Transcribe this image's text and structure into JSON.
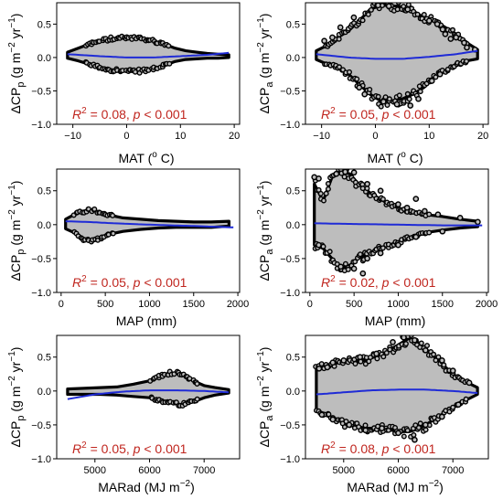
{
  "colors": {
    "trend": "#1f2bd6",
    "cloud": "#bdbdbd",
    "outline": "#000000",
    "annotation": "#c0261f"
  },
  "chart_data": [
    {
      "type": "scatter",
      "id": "A",
      "xlabel": "MAT (",
      "xlabel_sup": "o",
      "xlabel_tail": " C)",
      "ylabel_main": "ΔCP",
      "ylabel_sub": "p",
      "ylabel_unit": " (g m",
      "ylabel_sup1": "−2",
      "ylabel_mid": " yr",
      "ylabel_sup2": "−1",
      "ylabel_end": ")",
      "xlim": [
        -13,
        21
      ],
      "ylim": [
        -1.0,
        0.82
      ],
      "xticks": [
        -10,
        0,
        10,
        20
      ],
      "xticklabels": [
        "−10",
        "0",
        "10",
        "20"
      ],
      "yticks": [
        -1.0,
        -0.5,
        0.0,
        0.5
      ],
      "yticklabels": [
        "−1.0",
        "−0.5",
        "0.0",
        "0.5"
      ],
      "annotation": {
        "r2": "0.08",
        "p": "< 0.001"
      },
      "trend": [
        [
          -11,
          0.05
        ],
        [
          -5,
          0.02
        ],
        [
          0,
          0.0
        ],
        [
          5,
          0.0
        ],
        [
          10,
          0.02
        ],
        [
          15,
          0.04
        ],
        [
          19,
          0.07
        ]
      ],
      "envelope": {
        "x": [
          -11,
          -9,
          -7,
          -5,
          -3,
          -1,
          1,
          3,
          5,
          7,
          9,
          11,
          13,
          15,
          17,
          19
        ],
        "upper": [
          0.08,
          0.14,
          0.2,
          0.25,
          0.28,
          0.29,
          0.29,
          0.28,
          0.25,
          0.2,
          0.14,
          0.1,
          0.08,
          0.06,
          0.05,
          0.04
        ],
        "lower": [
          -0.01,
          -0.05,
          -0.1,
          -0.15,
          -0.18,
          -0.2,
          -0.21,
          -0.2,
          -0.17,
          -0.12,
          -0.06,
          -0.03,
          -0.02,
          -0.01,
          -0.01,
          0.0
        ]
      },
      "points": []
    },
    {
      "type": "scatter",
      "id": "B",
      "xlabel": "MAT (",
      "xlabel_sup": "o",
      "xlabel_tail": " C)",
      "ylabel_main": "ΔCP",
      "ylabel_sub": "a",
      "ylabel_unit": " (g m",
      "ylabel_sup1": "−2",
      "ylabel_mid": " yr",
      "ylabel_sup2": "−1",
      "ylabel_end": ")",
      "xlim": [
        -13,
        21
      ],
      "ylim": [
        -1.0,
        0.82
      ],
      "xticks": [
        -10,
        0,
        10,
        20
      ],
      "xticklabels": [
        "−10",
        "0",
        "10",
        "20"
      ],
      "yticks": [
        -1.0,
        -0.5,
        0.0,
        0.5
      ],
      "yticklabels": [
        "−1.0",
        "−0.5",
        "0.0",
        "0.5"
      ],
      "annotation": {
        "r2": "0.05",
        "p": "< 0.001"
      },
      "trend": [
        [
          -11,
          0.05
        ],
        [
          -5,
          0.0
        ],
        [
          0,
          -0.02
        ],
        [
          5,
          -0.02
        ],
        [
          10,
          0.01
        ],
        [
          15,
          0.05
        ],
        [
          19,
          0.1
        ]
      ],
      "envelope": {
        "x": [
          -11,
          -9,
          -7,
          -5,
          -3,
          -1,
          1,
          3,
          5,
          7,
          9,
          11,
          13,
          15,
          17,
          19
        ],
        "upper": [
          0.1,
          0.18,
          0.3,
          0.4,
          0.55,
          0.72,
          0.78,
          0.78,
          0.76,
          0.7,
          0.6,
          0.55,
          0.45,
          0.35,
          0.22,
          0.12
        ],
        "lower": [
          -0.03,
          -0.1,
          -0.15,
          -0.25,
          -0.4,
          -0.55,
          -0.65,
          -0.65,
          -0.62,
          -0.55,
          -0.45,
          -0.3,
          -0.2,
          -0.1,
          -0.05,
          -0.02
        ]
      },
      "points": [
        [
          -9.5,
          0.25
        ],
        [
          -8,
          0.3
        ],
        [
          -6.5,
          0.45
        ],
        [
          -4,
          0.6
        ],
        [
          -3,
          -0.45
        ],
        [
          -2,
          -0.55
        ],
        [
          0.5,
          0.78
        ],
        [
          2.5,
          0.77
        ],
        [
          4,
          -0.7
        ],
        [
          6,
          0.72
        ],
        [
          8,
          -0.62
        ],
        [
          10,
          0.55
        ],
        [
          11.5,
          0.5
        ],
        [
          12.5,
          0.42
        ],
        [
          13,
          0.35
        ],
        [
          14,
          0.28
        ],
        [
          15,
          0.3
        ],
        [
          16.5,
          0.22
        ],
        [
          17,
          0.15
        ],
        [
          18.5,
          0.12
        ],
        [
          12,
          -0.25
        ],
        [
          10.5,
          -0.35
        ],
        [
          6.5,
          -0.72
        ],
        [
          1.5,
          -0.66
        ]
      ]
    },
    {
      "type": "scatter",
      "id": "C",
      "xlabel": "MAP (mm)",
      "ylabel_main": "ΔCP",
      "ylabel_sub": "p",
      "ylabel_unit": " (g m",
      "ylabel_sup1": "−2",
      "ylabel_mid": " yr",
      "ylabel_sup2": "−1",
      "ylabel_end": ")",
      "xlim": [
        -50,
        2020
      ],
      "ylim": [
        -1.0,
        0.82
      ],
      "xticks": [
        0,
        500,
        1000,
        1500,
        2000
      ],
      "xticklabels": [
        "0",
        "500",
        "1000",
        "1500",
        "2000"
      ],
      "yticks": [
        -1.0,
        -0.5,
        0.0,
        0.5
      ],
      "yticklabels": [
        "−1.0",
        "−0.5",
        "0.0",
        "0.5"
      ],
      "annotation": {
        "r2": "0.05",
        "p": "< 0.001"
      },
      "trend": [
        [
          50,
          0.05
        ],
        [
          300,
          0.04
        ],
        [
          600,
          0.02
        ],
        [
          1000,
          0.0
        ],
        [
          1500,
          -0.02
        ],
        [
          1950,
          -0.04
        ]
      ],
      "envelope": {
        "x": [
          50,
          150,
          250,
          350,
          450,
          550,
          700,
          900,
          1100,
          1300,
          1500,
          1700,
          1900
        ],
        "upper": [
          0.08,
          0.15,
          0.2,
          0.22,
          0.18,
          0.14,
          0.1,
          0.08,
          0.06,
          0.05,
          0.04,
          0.04,
          0.05
        ],
        "lower": [
          -0.06,
          -0.12,
          -0.22,
          -0.25,
          -0.2,
          -0.14,
          -0.1,
          -0.07,
          -0.05,
          -0.04,
          -0.04,
          -0.04,
          -0.02
        ]
      },
      "points": []
    },
    {
      "type": "scatter",
      "id": "D",
      "xlabel": "MAP (mm)",
      "ylabel_main": "ΔCP",
      "ylabel_sub": "a",
      "ylabel_unit": " (g m",
      "ylabel_sup1": "−2",
      "ylabel_mid": " yr",
      "ylabel_sup2": "−1",
      "ylabel_end": ")",
      "xlim": [
        -50,
        2020
      ],
      "ylim": [
        -1.0,
        0.82
      ],
      "xticks": [
        0,
        500,
        1000,
        1500,
        2000
      ],
      "xticklabels": [
        "0",
        "500",
        "1000",
        "1500",
        "2000"
      ],
      "yticks": [
        -1.0,
        -0.5,
        0.0,
        0.5
      ],
      "yticklabels": [
        "−1.0",
        "−0.5",
        "0.0",
        "0.5"
      ],
      "annotation": {
        "r2": "0.02",
        "p": "< 0.001"
      },
      "trend": [
        [
          50,
          0.02
        ],
        [
          500,
          0.01
        ],
        [
          1000,
          0.0
        ],
        [
          1500,
          -0.01
        ],
        [
          1950,
          -0.01
        ]
      ],
      "envelope": {
        "x": [
          50,
          150,
          250,
          350,
          450,
          550,
          700,
          900,
          1100,
          1300,
          1500,
          1700,
          1900
        ],
        "upper": [
          0.6,
          0.35,
          0.7,
          0.78,
          0.75,
          0.6,
          0.45,
          0.3,
          0.2,
          0.15,
          0.12,
          0.08,
          0.05
        ],
        "lower": [
          -0.3,
          -0.35,
          -0.5,
          -0.65,
          -0.6,
          -0.5,
          -0.4,
          -0.3,
          -0.2,
          -0.12,
          -0.08,
          -0.05,
          -0.03
        ]
      },
      "points": [
        [
          50,
          0.7
        ],
        [
          100,
          0.68
        ],
        [
          300,
          0.75
        ],
        [
          400,
          0.78
        ],
        [
          500,
          0.77
        ],
        [
          650,
          0.6
        ],
        [
          800,
          0.5
        ],
        [
          1000,
          0.3
        ],
        [
          1100,
          0.25
        ],
        [
          1200,
          0.38
        ],
        [
          1300,
          0.2
        ],
        [
          1450,
          0.15
        ],
        [
          1700,
          0.1
        ],
        [
          1900,
          0.04
        ],
        [
          350,
          -0.62
        ],
        [
          500,
          -0.65
        ],
        [
          650,
          -0.5
        ],
        [
          800,
          -0.42
        ],
        [
          1000,
          -0.3
        ],
        [
          1200,
          -0.18
        ],
        [
          1500,
          -0.1
        ],
        [
          100,
          -0.3
        ],
        [
          600,
          -0.72
        ]
      ]
    },
    {
      "type": "scatter",
      "id": "E",
      "xlabel": "MARad (MJ m",
      "xlabel_sup": "−2",
      "xlabel_tail": ")",
      "ylabel_main": "ΔCP",
      "ylabel_sub": "p",
      "ylabel_unit": " (g m",
      "ylabel_sup1": "−2",
      "ylabel_mid": " yr",
      "ylabel_sup2": "−1",
      "ylabel_end": ")",
      "xlim": [
        4300,
        7650
      ],
      "ylim": [
        -1.0,
        0.82
      ],
      "xticks": [
        5000,
        6000,
        7000
      ],
      "xticklabels": [
        "5000",
        "6000",
        "7000"
      ],
      "yticks": [
        -1.0,
        -0.5,
        0.0,
        0.5
      ],
      "yticklabels": [
        "−1.0",
        "−0.5",
        "0.0",
        "0.5"
      ],
      "annotation": {
        "r2": "0.05",
        "p": "< 0.001"
      },
      "trend": [
        [
          4500,
          -0.12
        ],
        [
          5000,
          -0.05
        ],
        [
          5500,
          -0.01
        ],
        [
          6000,
          0.01
        ],
        [
          6500,
          0.01
        ],
        [
          7000,
          0.0
        ],
        [
          7450,
          -0.02
        ]
      ],
      "envelope": {
        "x": [
          4500,
          4800,
          5100,
          5400,
          5700,
          6000,
          6200,
          6400,
          6600,
          6800,
          7000,
          7200,
          7450
        ],
        "upper": [
          0.03,
          0.04,
          0.05,
          0.06,
          0.1,
          0.15,
          0.22,
          0.27,
          0.25,
          0.15,
          0.08,
          0.05,
          0.02
        ],
        "lower": [
          -0.05,
          -0.05,
          -0.05,
          -0.06,
          -0.08,
          -0.1,
          -0.14,
          -0.18,
          -0.2,
          -0.16,
          -0.1,
          -0.06,
          -0.03
        ]
      },
      "points": []
    },
    {
      "type": "scatter",
      "id": "F",
      "xlabel": "MARad (MJ m",
      "xlabel_sup": "−2",
      "xlabel_tail": ")",
      "ylabel_main": "ΔCP",
      "ylabel_sub": "a",
      "ylabel_unit": " (g m",
      "ylabel_sup1": "−2",
      "ylabel_mid": " yr",
      "ylabel_sup2": "−1",
      "ylabel_end": ")",
      "xlim": [
        4300,
        7650
      ],
      "ylim": [
        -1.0,
        0.82
      ],
      "xticks": [
        5000,
        6000,
        7000
      ],
      "xticklabels": [
        "5000",
        "6000",
        "7000"
      ],
      "yticks": [
        -1.0,
        -0.5,
        0.0,
        0.5
      ],
      "yticklabels": [
        "−1.0",
        "−0.5",
        "0.0",
        "0.5"
      ],
      "annotation": {
        "r2": "0.08",
        "p": "< 0.001"
      },
      "trend": [
        [
          4500,
          -0.05
        ],
        [
          5000,
          -0.02
        ],
        [
          5500,
          0.01
        ],
        [
          6000,
          0.02
        ],
        [
          6500,
          0.02
        ],
        [
          7000,
          0.0
        ],
        [
          7450,
          -0.03
        ]
      ],
      "envelope": {
        "x": [
          4500,
          4800,
          5100,
          5400,
          5700,
          6000,
          6200,
          6400,
          6600,
          6800,
          7000,
          7200,
          7450
        ],
        "upper": [
          0.35,
          0.4,
          0.45,
          0.45,
          0.55,
          0.68,
          0.78,
          0.7,
          0.55,
          0.4,
          0.25,
          0.15,
          0.05
        ],
        "lower": [
          -0.3,
          -0.4,
          -0.5,
          -0.55,
          -0.55,
          -0.6,
          -0.6,
          -0.55,
          -0.45,
          -0.35,
          -0.25,
          -0.15,
          -0.05
        ]
      },
      "points": [
        [
          4550,
          0.33
        ],
        [
          4700,
          0.35
        ],
        [
          4800,
          0.42
        ],
        [
          5000,
          0.45
        ],
        [
          5300,
          0.5
        ],
        [
          5600,
          0.55
        ],
        [
          5900,
          0.72
        ],
        [
          6100,
          0.79
        ],
        [
          6300,
          0.75
        ],
        [
          6500,
          0.6
        ],
        [
          6800,
          0.45
        ],
        [
          7000,
          0.3
        ],
        [
          7300,
          0.12
        ],
        [
          4600,
          -0.35
        ],
        [
          4800,
          -0.42
        ],
        [
          5100,
          -0.5
        ],
        [
          5400,
          -0.58
        ],
        [
          5700,
          -0.55
        ],
        [
          6000,
          -0.62
        ],
        [
          6300,
          -0.72
        ],
        [
          6500,
          -0.5
        ],
        [
          6800,
          -0.38
        ],
        [
          7100,
          -0.2
        ]
      ]
    }
  ]
}
